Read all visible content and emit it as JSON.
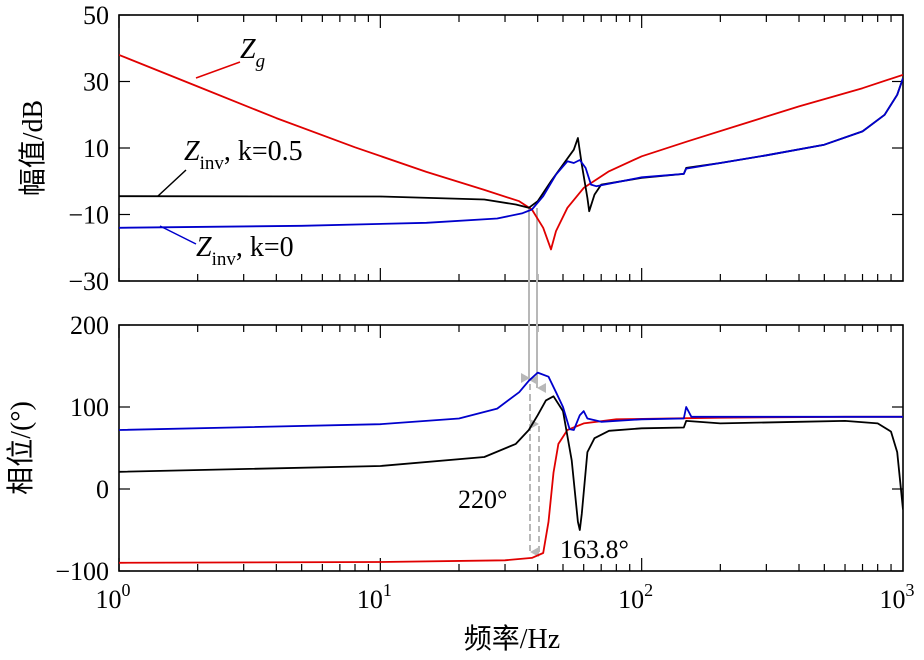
{
  "chart_data": [
    {
      "type": "line",
      "ylabel": "幅值/dB",
      "xscale": "log",
      "xlim": [
        1,
        1000
      ],
      "ylim": [
        -30,
        50
      ],
      "yticks": [
        "50",
        "30",
        "10",
        "-10",
        "-30"
      ],
      "yticks_values": [
        50,
        30,
        10,
        -10,
        -30
      ],
      "series": [
        {
          "name": "Zg",
          "label_main": "Z",
          "label_sub": "g",
          "color": "#e00000",
          "points": [
            [
              1,
              38
            ],
            [
              2,
              28.5
            ],
            [
              4,
              19
            ],
            [
              8,
              10.2
            ],
            [
              15,
              2.8
            ],
            [
              25,
              -2.6
            ],
            [
              34,
              -6
            ],
            [
              38,
              -8.5
            ],
            [
              42,
              -14
            ],
            [
              45,
              -20.5
            ],
            [
              47,
              -15
            ],
            [
              52,
              -8
            ],
            [
              60,
              -2
            ],
            [
              75,
              3
            ],
            [
              100,
              7.5
            ],
            [
              150,
              12
            ],
            [
              250,
              17.5
            ],
            [
              400,
              22.5
            ],
            [
              700,
              28
            ],
            [
              1000,
              32
            ]
          ]
        },
        {
          "name": "Zinv, k=0.5",
          "label_main": "Z",
          "label_sub": "inv",
          "label_rest": ", k=0.5",
          "color": "#000000",
          "points": [
            [
              1,
              -4.5
            ],
            [
              10,
              -4.6
            ],
            [
              25,
              -5.5
            ],
            [
              33,
              -7
            ],
            [
              37,
              -8
            ],
            [
              40,
              -6
            ],
            [
              45,
              0
            ],
            [
              50,
              5
            ],
            [
              55,
              9.5
            ],
            [
              57,
              13
            ],
            [
              59,
              5
            ],
            [
              62,
              -5
            ],
            [
              63,
              -9
            ],
            [
              66,
              -4
            ],
            [
              70,
              -1
            ],
            [
              100,
              1
            ],
            [
              145,
              2.2
            ],
            [
              148,
              4
            ],
            [
              200,
              5.5
            ],
            [
              300,
              7.8
            ],
            [
              500,
              11
            ],
            [
              700,
              15
            ],
            [
              850,
              20
            ],
            [
              950,
              26
            ],
            [
              1000,
              31
            ]
          ]
        },
        {
          "name": "Zinv, k=0",
          "label_main": "Z",
          "label_sub": "inv",
          "label_rest": ", k=0",
          "color": "#0000cc",
          "points": [
            [
              1,
              -14
            ],
            [
              5,
              -13.4
            ],
            [
              15,
              -12.5
            ],
            [
              28,
              -11.2
            ],
            [
              35,
              -9.6
            ],
            [
              38,
              -8.5
            ],
            [
              42,
              -4.5
            ],
            [
              47,
              2
            ],
            [
              52,
              6
            ],
            [
              55,
              5.5
            ],
            [
              58,
              6.4
            ],
            [
              61,
              4
            ],
            [
              64,
              -1
            ],
            [
              67,
              -1.5
            ],
            [
              72,
              -1
            ],
            [
              100,
              1.2
            ],
            [
              145,
              2.2
            ],
            [
              148,
              3.8
            ],
            [
              200,
              5.5
            ],
            [
              300,
              7.8
            ],
            [
              500,
              11
            ],
            [
              700,
              15
            ],
            [
              850,
              20
            ],
            [
              950,
              26
            ],
            [
              1000,
              31
            ]
          ]
        }
      ]
    },
    {
      "type": "line",
      "ylabel": "相位/(°)",
      "xlabel": "频率/Hz",
      "xscale": "log",
      "xlim": [
        1,
        1000
      ],
      "ylim": [
        -100,
        200
      ],
      "yticks": [
        "200",
        "100",
        "0",
        "-100"
      ],
      "yticks_values": [
        200,
        100,
        0,
        -100
      ],
      "xticks": [
        {
          "base": "10",
          "exp": "0",
          "value": 1
        },
        {
          "base": "10",
          "exp": "1",
          "value": 10
        },
        {
          "base": "10",
          "exp": "2",
          "value": 100
        },
        {
          "base": "10",
          "exp": "3",
          "value": 1000
        }
      ],
      "annotations": {
        "left": "220°",
        "right": "163.8°"
      },
      "series": [
        {
          "name": "Zg",
          "color": "#e00000",
          "points": [
            [
              1,
              -90
            ],
            [
              10,
              -89
            ],
            [
              30,
              -87
            ],
            [
              38,
              -84
            ],
            [
              42,
              -78
            ],
            [
              44,
              -40
            ],
            [
              46,
              20
            ],
            [
              48,
              55
            ],
            [
              52,
              72
            ],
            [
              60,
              80
            ],
            [
              80,
              85
            ],
            [
              200,
              87
            ],
            [
              600,
              88
            ],
            [
              1000,
              88
            ]
          ]
        },
        {
          "name": "Zinv, k=0.5",
          "color": "#000000",
          "points": [
            [
              1,
              21
            ],
            [
              10,
              28
            ],
            [
              25,
              39
            ],
            [
              33,
              55
            ],
            [
              37,
              72
            ],
            [
              40,
              90
            ],
            [
              43,
              108
            ],
            [
              46,
              113
            ],
            [
              50,
              95
            ],
            [
              54,
              35
            ],
            [
              57,
              -40
            ],
            [
              58,
              -50
            ],
            [
              59,
              -30
            ],
            [
              62,
              45
            ],
            [
              66,
              62
            ],
            [
              75,
              71
            ],
            [
              100,
              74
            ],
            [
              145,
              75
            ],
            [
              148,
              83
            ],
            [
              200,
              80
            ],
            [
              400,
              82
            ],
            [
              600,
              83
            ],
            [
              800,
              80
            ],
            [
              900,
              70
            ],
            [
              950,
              45
            ],
            [
              1000,
              -25
            ]
          ]
        },
        {
          "name": "Zinv, k=0",
          "color": "#0000cc",
          "points": [
            [
              1,
              72
            ],
            [
              10,
              79
            ],
            [
              20,
              86
            ],
            [
              28,
              98
            ],
            [
              34,
              118
            ],
            [
              37,
              132
            ],
            [
              40,
              142
            ],
            [
              44,
              137
            ],
            [
              47,
              118
            ],
            [
              50,
              100
            ],
            [
              53,
              73
            ],
            [
              55,
              72
            ],
            [
              58,
              90
            ],
            [
              60,
              95
            ],
            [
              62,
              86
            ],
            [
              70,
              82
            ],
            [
              100,
              85
            ],
            [
              145,
              86
            ],
            [
              148,
              100
            ],
            [
              155,
              88
            ],
            [
              200,
              88
            ],
            [
              1000,
              88
            ]
          ]
        }
      ]
    }
  ]
}
